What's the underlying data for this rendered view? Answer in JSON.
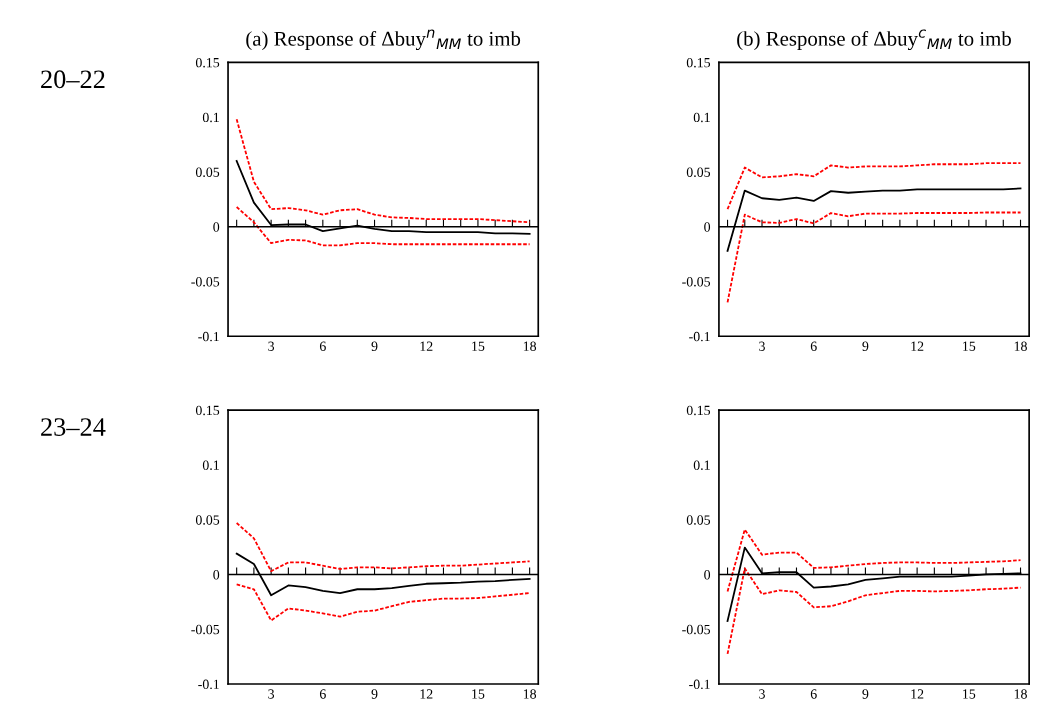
{
  "chart_data": [
    {
      "type": "line",
      "title": "(a) Response of Δbuy$^{n}$$_{MM}$ to imb",
      "annotations": [
        "20–22"
      ],
      "x": [
        1,
        2,
        3,
        4,
        5,
        6,
        7,
        8,
        9,
        10,
        11,
        12,
        13,
        14,
        15,
        16,
        17,
        18
      ],
      "xlim": [
        0.5,
        18.5
      ],
      "ylim": [
        -0.1,
        0.15
      ],
      "yticks": [
        -0.1,
        -0.05,
        0,
        0.05,
        0.1,
        0.15
      ],
      "xticks": [
        {
          "value": 1,
          "label": null
        },
        {
          "value": 2,
          "label": null
        },
        3,
        {
          "value": 4,
          "label": null
        },
        {
          "value": 5,
          "label": null
        },
        6,
        {
          "value": 7,
          "label": null
        },
        {
          "value": 8,
          "label": null
        },
        9,
        {
          "value": 10,
          "label": null
        },
        {
          "value": 11,
          "label": null
        },
        12,
        {
          "value": 13,
          "label": null
        },
        {
          "value": 14,
          "label": null
        },
        15,
        {
          "value": 16,
          "label": null
        },
        {
          "value": 17,
          "label": null
        },
        18
      ],
      "ref_lines": [
        {
          "axis": "y",
          "value": 0,
          "color": "#000000"
        }
      ],
      "series": [
        {
          "color": "#000000",
          "line_style": "solid",
          "values": [
            0.06,
            0.022,
            0.0015,
            0.002,
            0.002,
            -0.004,
            -0.0015,
            0.001,
            -0.002,
            -0.004,
            -0.004,
            -0.005,
            -0.005,
            -0.005,
            -0.005,
            -0.006,
            -0.006,
            -0.0065
          ]
        },
        {
          "color": "#ff0000",
          "line_style": "dashed",
          "values": [
            0.098,
            0.041,
            0.016,
            0.017,
            0.015,
            0.011,
            0.015,
            0.016,
            0.011,
            0.0085,
            0.008,
            0.007,
            0.007,
            0.007,
            0.007,
            0.006,
            0.005,
            0.004
          ]
        },
        {
          "color": "#ff0000",
          "line_style": "dashed",
          "values": [
            0.018,
            0.004,
            -0.015,
            -0.012,
            -0.0125,
            -0.017,
            -0.017,
            -0.015,
            -0.015,
            -0.016,
            -0.016,
            -0.016,
            -0.016,
            -0.016,
            -0.016,
            -0.016,
            -0.016,
            -0.016
          ]
        }
      ]
    },
    {
      "type": "line",
      "title": "(b) Response of Δbuy$^{c}$$_{MM}$ to imb",
      "x": [
        1,
        2,
        3,
        4,
        5,
        6,
        7,
        8,
        9,
        10,
        11,
        12,
        13,
        14,
        15,
        16,
        17,
        18
      ],
      "xlim": [
        0.5,
        18.5
      ],
      "ylim": [
        -0.1,
        0.15
      ],
      "yticks": [
        -0.1,
        -0.05,
        0,
        0.05,
        0.1,
        0.15
      ],
      "xticks": [
        {
          "value": 1,
          "label": null
        },
        {
          "value": 2,
          "label": null
        },
        3,
        {
          "value": 4,
          "label": null
        },
        {
          "value": 5,
          "label": null
        },
        6,
        {
          "value": 7,
          "label": null
        },
        {
          "value": 8,
          "label": null
        },
        9,
        {
          "value": 10,
          "label": null
        },
        {
          "value": 11,
          "label": null
        },
        12,
        {
          "value": 13,
          "label": null
        },
        {
          "value": 14,
          "label": null
        },
        15,
        {
          "value": 16,
          "label": null
        },
        {
          "value": 17,
          "label": null
        },
        18
      ],
      "ref_lines": [
        {
          "axis": "y",
          "value": 0,
          "color": "#000000"
        }
      ],
      "series": [
        {
          "color": "#000000",
          "line_style": "solid",
          "values": [
            -0.022,
            0.033,
            0.026,
            0.0245,
            0.0265,
            0.0235,
            0.0325,
            0.031,
            0.032,
            0.033,
            0.033,
            0.034,
            0.034,
            0.034,
            0.034,
            0.034,
            0.034,
            0.035
          ]
        },
        {
          "color": "#ff0000",
          "line_style": "dashed",
          "values": [
            0.016,
            0.054,
            0.045,
            0.046,
            0.048,
            0.046,
            0.056,
            0.054,
            0.055,
            0.055,
            0.055,
            0.056,
            0.057,
            0.057,
            0.057,
            0.058,
            0.058,
            0.058
          ]
        },
        {
          "color": "#ff0000",
          "line_style": "dashed",
          "values": [
            -0.069,
            0.011,
            0.004,
            0.0035,
            0.007,
            0.003,
            0.0125,
            0.0095,
            0.012,
            0.012,
            0.012,
            0.0125,
            0.0125,
            0.0125,
            0.0125,
            0.013,
            0.013,
            0.013
          ]
        }
      ]
    },
    {
      "type": "line",
      "annotations": [
        "23–24"
      ],
      "x": [
        1,
        2,
        3,
        4,
        5,
        6,
        7,
        8,
        9,
        10,
        11,
        12,
        13,
        14,
        15,
        16,
        17,
        18
      ],
      "xlim": [
        0.5,
        18.5
      ],
      "ylim": [
        -0.1,
        0.15
      ],
      "yticks": [
        -0.1,
        -0.05,
        0,
        0.05,
        0.1,
        0.15
      ],
      "xticks": [
        {
          "value": 1,
          "label": null
        },
        {
          "value": 2,
          "label": null
        },
        3,
        {
          "value": 4,
          "label": null
        },
        {
          "value": 5,
          "label": null
        },
        6,
        {
          "value": 7,
          "label": null
        },
        {
          "value": 8,
          "label": null
        },
        9,
        {
          "value": 10,
          "label": null
        },
        {
          "value": 11,
          "label": null
        },
        12,
        {
          "value": 13,
          "label": null
        },
        {
          "value": 14,
          "label": null
        },
        15,
        {
          "value": 16,
          "label": null
        },
        {
          "value": 17,
          "label": null
        },
        18
      ],
      "ref_lines": [
        {
          "axis": "y",
          "value": 0,
          "color": "#000000"
        }
      ],
      "series": [
        {
          "color": "#000000",
          "line_style": "solid",
          "values": [
            0.019,
            0.0095,
            -0.019,
            -0.01,
            -0.0115,
            -0.015,
            -0.017,
            -0.0135,
            -0.0135,
            -0.0125,
            -0.0105,
            -0.0085,
            -0.008,
            -0.0075,
            -0.0065,
            -0.006,
            -0.005,
            -0.004
          ]
        },
        {
          "color": "#ff0000",
          "line_style": "dashed",
          "values": [
            0.047,
            0.033,
            0.003,
            0.011,
            0.011,
            0.008,
            0.005,
            0.0065,
            0.0065,
            0.0055,
            0.0065,
            0.0075,
            0.008,
            0.008,
            0.009,
            0.01,
            0.011,
            0.012
          ]
        },
        {
          "color": "#ff0000",
          "line_style": "dashed",
          "values": [
            -0.009,
            -0.0135,
            -0.042,
            -0.031,
            -0.033,
            -0.0355,
            -0.0385,
            -0.034,
            -0.033,
            -0.029,
            -0.025,
            -0.0235,
            -0.022,
            -0.022,
            -0.0215,
            -0.02,
            -0.0185,
            -0.017
          ]
        }
      ]
    },
    {
      "type": "line",
      "x": [
        1,
        2,
        3,
        4,
        5,
        6,
        7,
        8,
        9,
        10,
        11,
        12,
        13,
        14,
        15,
        16,
        17,
        18
      ],
      "xlim": [
        0.5,
        18.5
      ],
      "ylim": [
        -0.1,
        0.15
      ],
      "yticks": [
        -0.1,
        -0.05,
        0,
        0.05,
        0.1,
        0.15
      ],
      "xticks": [
        {
          "value": 1,
          "label": null
        },
        {
          "value": 2,
          "label": null
        },
        3,
        {
          "value": 4,
          "label": null
        },
        {
          "value": 5,
          "label": null
        },
        6,
        {
          "value": 7,
          "label": null
        },
        {
          "value": 8,
          "label": null
        },
        9,
        {
          "value": 10,
          "label": null
        },
        {
          "value": 11,
          "label": null
        },
        12,
        {
          "value": 13,
          "label": null
        },
        {
          "value": 14,
          "label": null
        },
        15,
        {
          "value": 16,
          "label": null
        },
        {
          "value": 17,
          "label": null
        },
        18
      ],
      "ref_lines": [
        {
          "axis": "y",
          "value": 0,
          "color": "#000000"
        }
      ],
      "series": [
        {
          "color": "#000000",
          "line_style": "solid",
          "values": [
            -0.0425,
            0.0245,
            0.001,
            0.002,
            0.002,
            -0.012,
            -0.011,
            -0.009,
            -0.005,
            -0.0035,
            -0.002,
            -0.002,
            -0.002,
            -0.002,
            -0.001,
            0,
            0.0005,
            0.001
          ]
        },
        {
          "color": "#ff0000",
          "line_style": "dashed",
          "values": [
            -0.0155,
            0.041,
            0.018,
            0.02,
            0.02,
            0.006,
            0.0065,
            0.008,
            0.0095,
            0.0105,
            0.011,
            0.011,
            0.0105,
            0.0105,
            0.011,
            0.0115,
            0.012,
            0.013
          ]
        },
        {
          "color": "#ff0000",
          "line_style": "dashed",
          "values": [
            -0.0725,
            0.0055,
            -0.018,
            -0.0145,
            -0.016,
            -0.03,
            -0.029,
            -0.0245,
            -0.019,
            -0.017,
            -0.015,
            -0.015,
            -0.0155,
            -0.015,
            -0.0145,
            -0.0135,
            -0.013,
            -0.012
          ]
        }
      ]
    }
  ]
}
